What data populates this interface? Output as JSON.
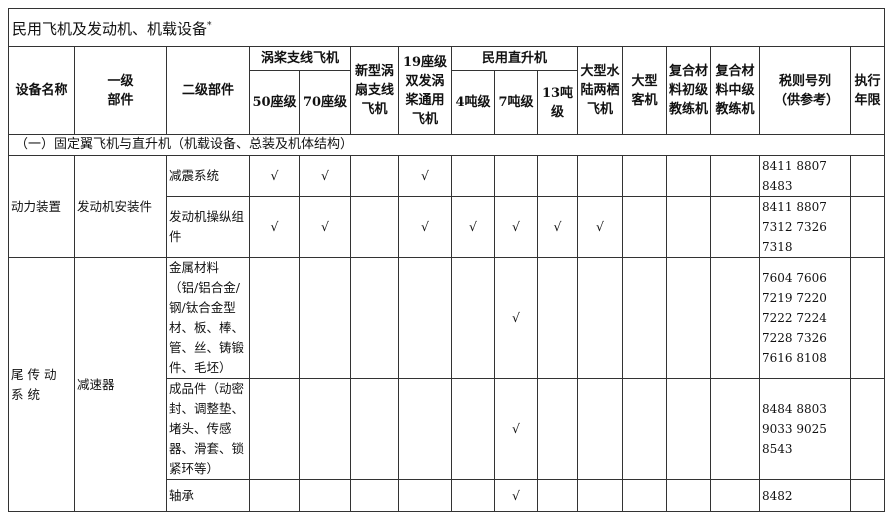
{
  "title": "民用飞机及发动机、机载设备",
  "title_mark": "*",
  "headers": {
    "equipment_name": "设备名称",
    "level1": "一级部件",
    "level2": "二级部件",
    "turboprop_group": "涡桨支线飞机",
    "seat50": "50座级",
    "seat70": "70座级",
    "turbofan": "新型涡扇支线飞机",
    "seat19": "19座级双发涡桨通用飞机",
    "heli_group": "民用直升机",
    "ton4": "4吨级",
    "ton7": "7吨级",
    "ton13": "13吨级",
    "amphibian": "大型水陆两栖飞机",
    "airliner": "大型客机",
    "trainer_basic": "复合材料初级教练机",
    "trainer_mid": "复合材料中级教练机",
    "tariff": "税则号列（供参考）",
    "period": "执行年限"
  },
  "section": "（一）固定翼飞机与直升机（机载设备、总装及机体结构）",
  "check_mark": "√",
  "groups": [
    {
      "name": "动力装置",
      "level1": "发动机安装件",
      "rows": [
        {
          "level2": "减震系统",
          "checks": [
            1,
            1,
            0,
            1,
            0,
            0,
            0,
            0,
            0,
            0,
            0
          ],
          "tariff": "8411 8807 8483",
          "period": ""
        },
        {
          "level2": "发动机操纵组件",
          "checks": [
            1,
            1,
            0,
            1,
            1,
            1,
            1,
            1,
            0,
            0,
            0
          ],
          "tariff": "8411 8807 7312 7326 7318",
          "period": ""
        }
      ]
    },
    {
      "name": "尾传动系统",
      "level1": "减速器",
      "rows": [
        {
          "level2": "金属材料（铝/铝合金/钢/钛合金型材、板、棒、管、丝、铸锻件、毛坯）",
          "checks": [
            0,
            0,
            0,
            0,
            0,
            1,
            0,
            0,
            0,
            0,
            0
          ],
          "tariff": "7604 7606 7219 7220 7222 7224 7228 7326 7616 8108",
          "period": ""
        },
        {
          "level2": "成品件（动密封、调整垫、堵头、传感器、滑套、锁紧环等）",
          "checks": [
            0,
            0,
            0,
            0,
            0,
            1,
            0,
            0,
            0,
            0,
            0
          ],
          "tariff": "8484 8803 9033 9025 8543",
          "period": ""
        },
        {
          "level2": "轴承",
          "checks": [
            0,
            0,
            0,
            0,
            0,
            1,
            0,
            0,
            0,
            0,
            0
          ],
          "tariff": "8482",
          "period": ""
        }
      ]
    }
  ]
}
